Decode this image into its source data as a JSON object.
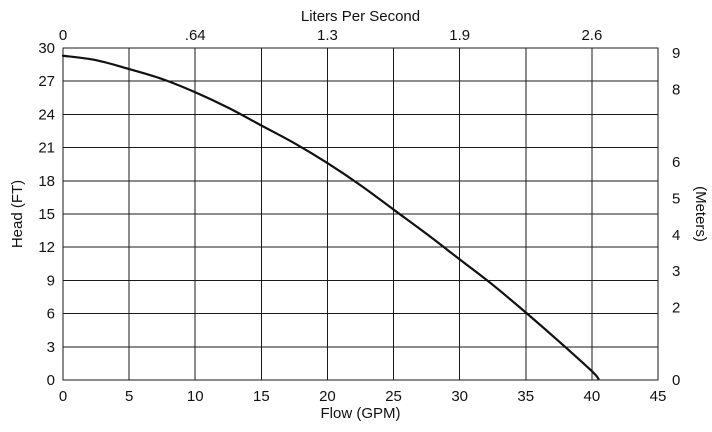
{
  "chart_data": {
    "type": "line",
    "title": "",
    "xlabel": "Flow (GPM)",
    "ylabel": "Head (FT)",
    "x2label": "Liters Per Second",
    "y2label": "(Meters)",
    "xlim": [
      0,
      45
    ],
    "ylim": [
      0,
      30
    ],
    "x_ticks": [
      0,
      5,
      10,
      15,
      20,
      25,
      30,
      35,
      40,
      45
    ],
    "y_ticks": [
      0,
      3,
      6,
      9,
      12,
      15,
      18,
      21,
      24,
      27,
      30
    ],
    "x2_ticks": [
      {
        "label": "0",
        "at_gpm": 0
      },
      {
        "label": ".64",
        "at_gpm": 10
      },
      {
        "label": "1.3",
        "at_gpm": 20
      },
      {
        "label": "1.9",
        "at_gpm": 30
      },
      {
        "label": "2.6",
        "at_gpm": 40
      }
    ],
    "y2_ticks": [
      {
        "label": "0",
        "at_ft": 0
      },
      {
        "label": "2",
        "at_ft": 6.56
      },
      {
        "label": "3",
        "at_ft": 9.84
      },
      {
        "label": "4",
        "at_ft": 13.12
      },
      {
        "label": "5",
        "at_ft": 16.4
      },
      {
        "label": "6",
        "at_ft": 19.69
      },
      {
        "label": "8",
        "at_ft": 26.25
      },
      {
        "label": "9",
        "at_ft": 29.53
      }
    ],
    "grid": true,
    "series": [
      {
        "x": [
          0,
          2.5,
          5,
          7.5,
          10,
          12.5,
          15,
          17.5,
          20,
          22.5,
          25,
          27.5,
          30,
          32.5,
          35,
          37.5,
          40,
          40.5
        ],
        "y": [
          29.3,
          28.9,
          28.1,
          27.2,
          26.0,
          24.6,
          23.0,
          21.4,
          19.6,
          17.6,
          15.4,
          13.2,
          10.9,
          8.6,
          6.1,
          3.5,
          0.8,
          0.1
        ]
      }
    ]
  }
}
